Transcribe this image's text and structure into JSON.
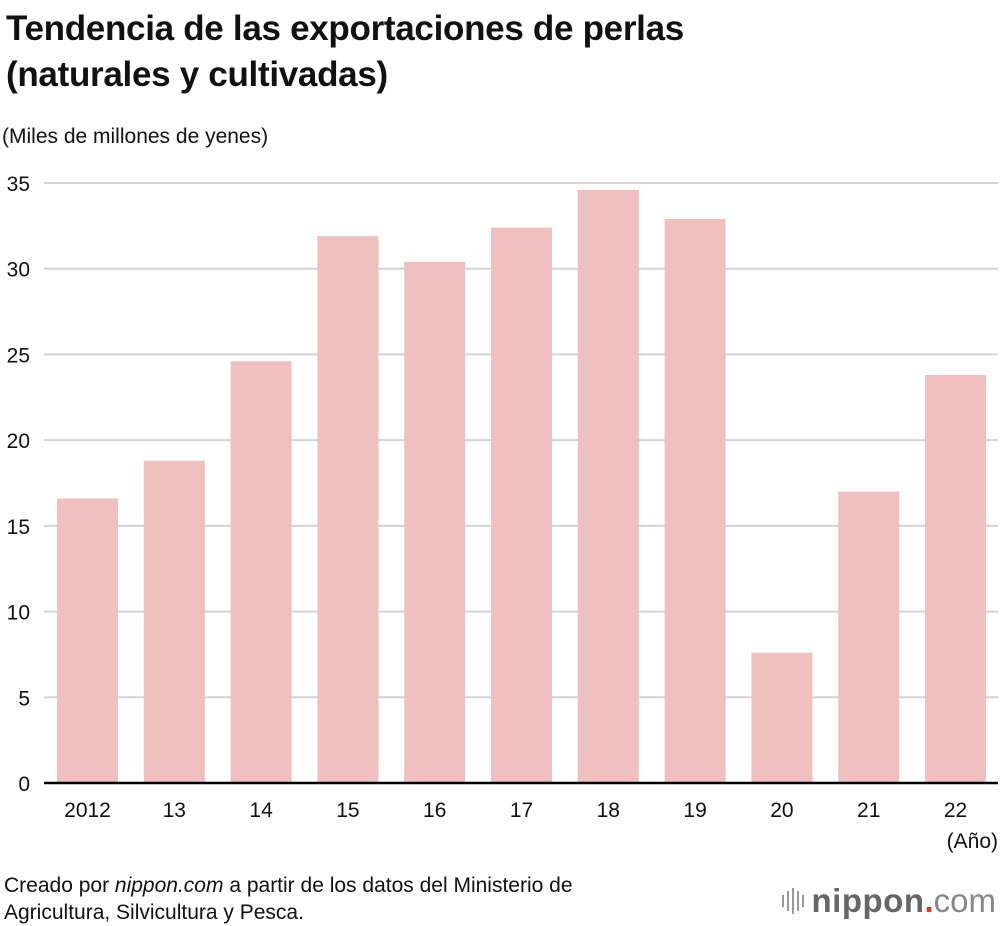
{
  "header": {
    "title_line1": "Tendencia de las exportaciones de perlas",
    "title_line2": "(naturales y cultivadas)",
    "unit_label": "(Miles de millones de yenes)"
  },
  "footer": {
    "x_unit": "(Año)",
    "source_prefix": "Creado por ",
    "source_site": "nippon.com",
    "source_line1_rest": " a partir de los datos del Ministerio de",
    "source_line2": "Agricultura, Silvicultura y Pesca.",
    "logo_brand": "nippon",
    "logo_dot": ".",
    "logo_tld": "com",
    "logo_icon": "sound-bars-icon"
  },
  "colors": {
    "bar": "#f0c0c0",
    "grid": "#d4d4d4",
    "axis": "#000000",
    "logo_dot": "#e8302e"
  },
  "chart_data": {
    "type": "bar",
    "title": "Tendencia de las exportaciones de perlas (naturales y cultivadas)",
    "xlabel": "(Año)",
    "ylabel": "(Miles de millones de yenes)",
    "categories": [
      "2012",
      "13",
      "14",
      "15",
      "16",
      "17",
      "18",
      "19",
      "20",
      "21",
      "22"
    ],
    "values": [
      16.6,
      18.8,
      24.6,
      31.9,
      30.4,
      32.4,
      34.6,
      32.9,
      7.6,
      17.0,
      23.8
    ],
    "ylim": [
      0,
      35
    ],
    "yticks": [
      0,
      5,
      10,
      15,
      20,
      25,
      30,
      35
    ],
    "grid": true,
    "legend": "none"
  }
}
